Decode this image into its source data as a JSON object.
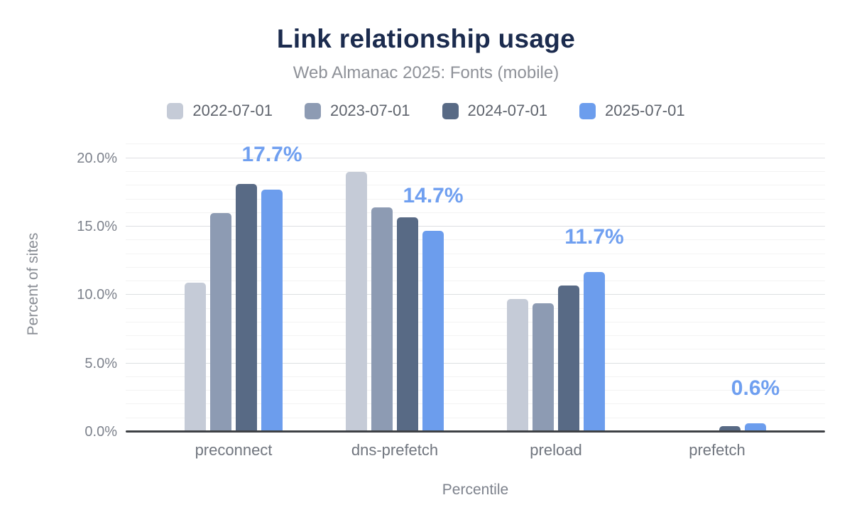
{
  "header": {
    "title": "Link relationship usage",
    "subtitle": "Web Almanac 2025: Fonts (mobile)"
  },
  "chart_data": {
    "type": "bar",
    "title": "Link relationship usage",
    "subtitle": "Web Almanac 2025: Fonts (mobile)",
    "categories": [
      "preconnect",
      "dns-prefetch",
      "preload",
      "prefetch"
    ],
    "series": [
      {
        "name": "2022-07-01",
        "color": "#c5cbd7",
        "values": [
          10.9,
          19.0,
          9.7,
          0.0
        ]
      },
      {
        "name": "2023-07-01",
        "color": "#8d9bb3",
        "values": [
          16.0,
          16.4,
          9.4,
          0.0
        ]
      },
      {
        "name": "2024-07-01",
        "color": "#586a85",
        "values": [
          18.1,
          15.7,
          10.7,
          0.4
        ]
      },
      {
        "name": "2025-07-01",
        "color": "#6c9ded",
        "values": [
          17.7,
          14.7,
          11.7,
          0.6
        ]
      }
    ],
    "value_labels": [
      "17.7%",
      "14.7%",
      "11.7%",
      "0.6%"
    ],
    "value_labels_refer_to_series": "2025-07-01",
    "xlabel": "Percentile",
    "ylabel": "Percent of sites",
    "yticks": [
      {
        "value": 0,
        "label": "0.0%"
      },
      {
        "value": 5,
        "label": "5.0%"
      },
      {
        "value": 10,
        "label": "10.0%"
      },
      {
        "value": 15,
        "label": "15.0%"
      },
      {
        "value": 20,
        "label": "20.0%"
      }
    ],
    "ylim": [
      0,
      21.7
    ],
    "grid": {
      "orientation": "horizontal",
      "major_interval": 5,
      "minor_interval": 1
    },
    "legend_position": "top"
  },
  "colors": {
    "background": "#ffffff",
    "title": "#1b2b4e",
    "subtitle": "#8e9198",
    "legend_text": "#5e636c",
    "axis_text": "#7d828c",
    "category_text": "#70757e",
    "value_label": "#6f9ff0",
    "axis_line": "#3e4145",
    "gridline_major": "#dddfe2",
    "gridline_minor": "#f3f3f3"
  }
}
